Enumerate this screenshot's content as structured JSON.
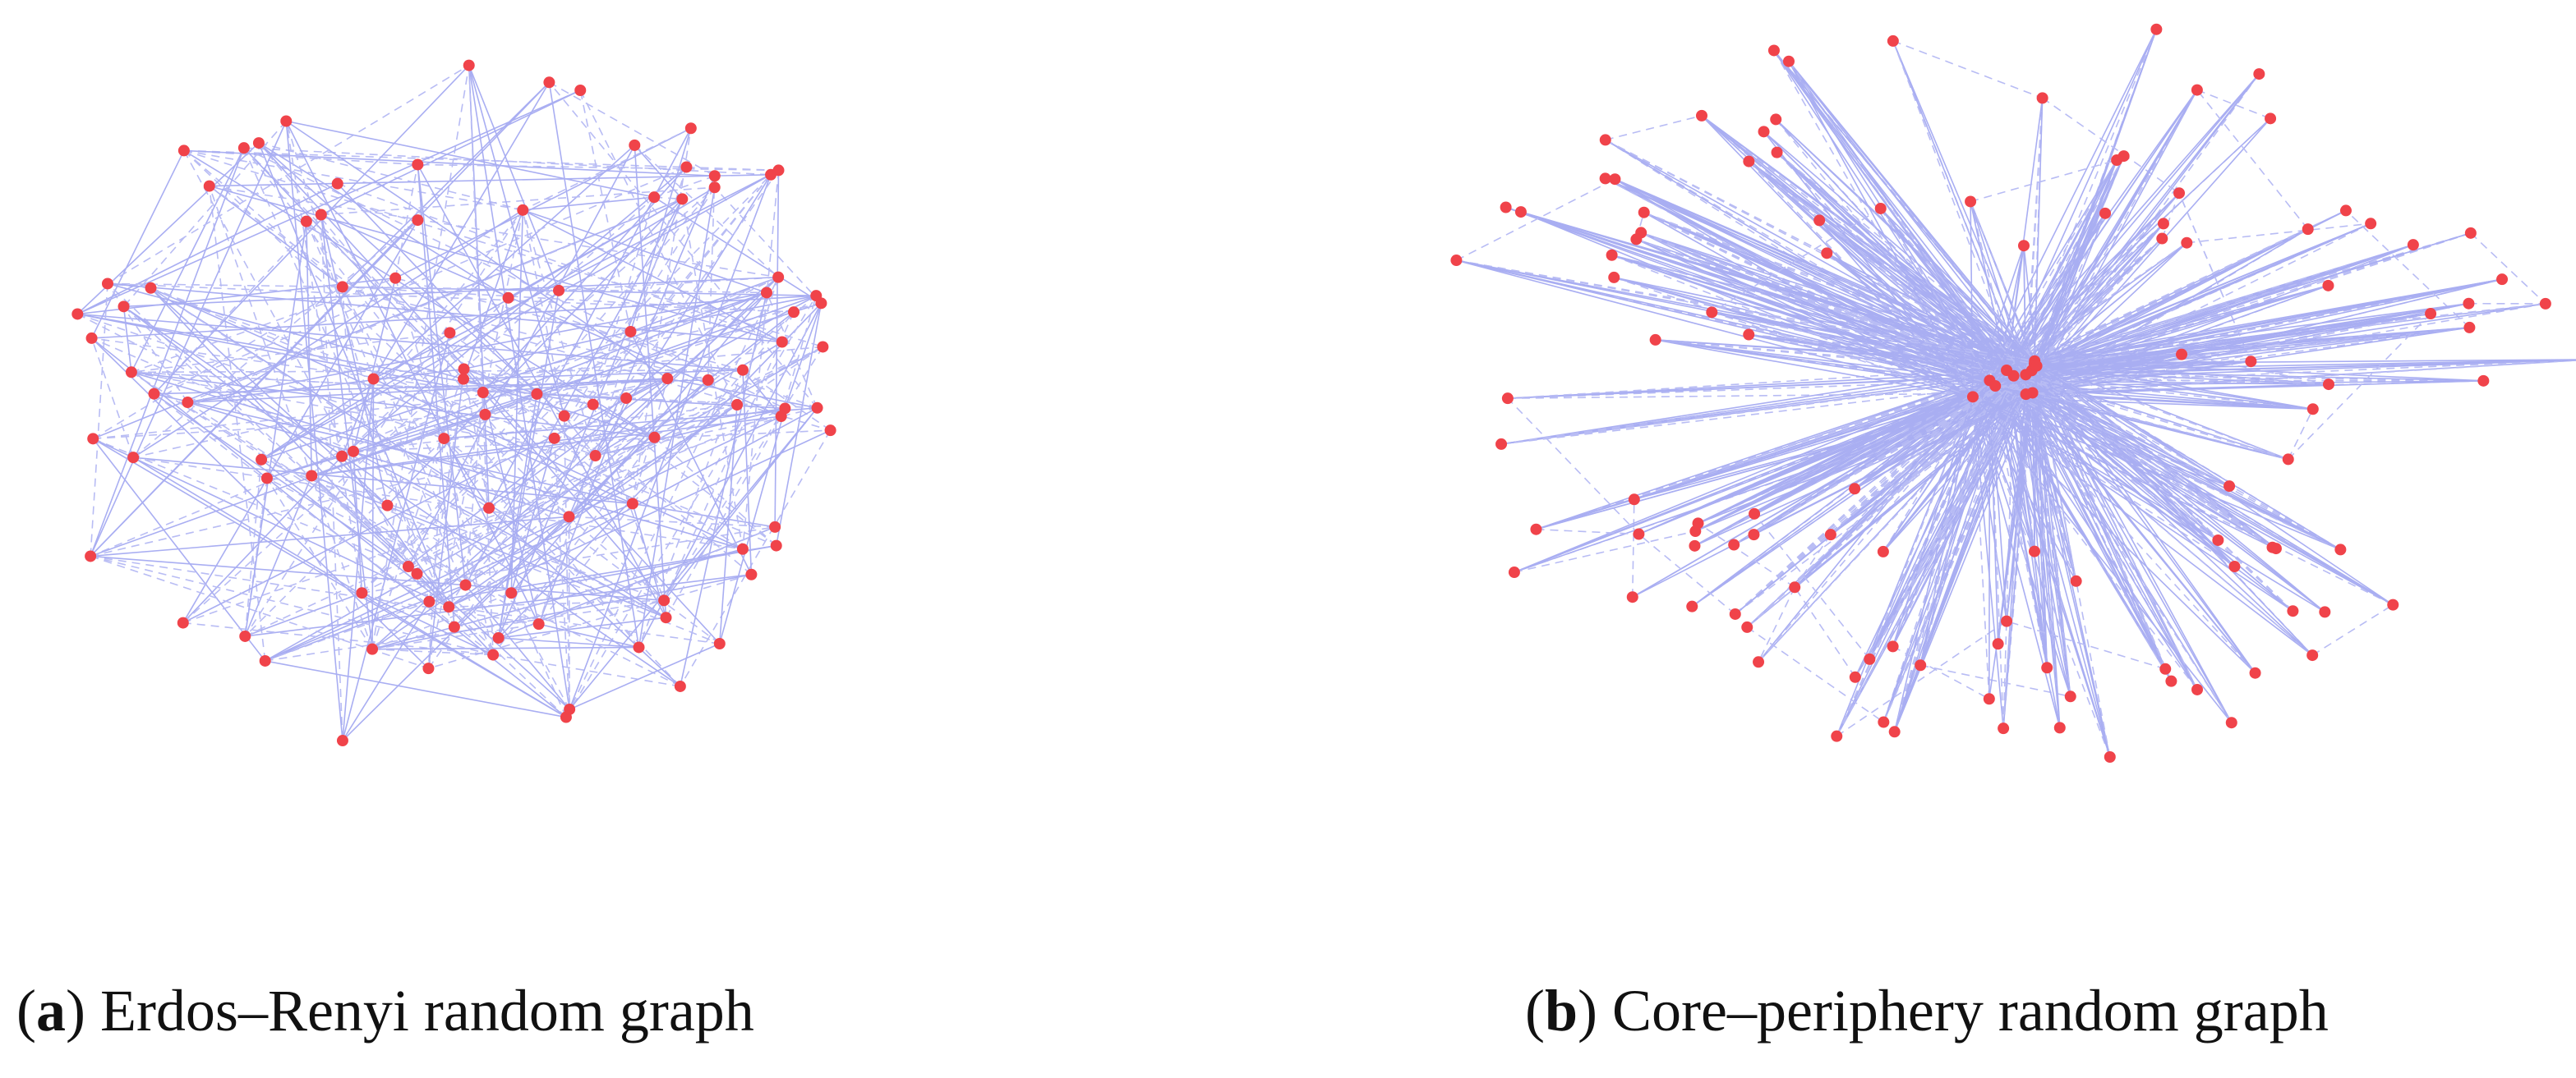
{
  "captions": [
    {
      "parts": [
        "(",
        "a",
        ") Erdos–Renyi random graph"
      ]
    },
    {
      "parts": [
        "(",
        "b",
        ") Core–periphery random graph"
      ]
    }
  ]
}
